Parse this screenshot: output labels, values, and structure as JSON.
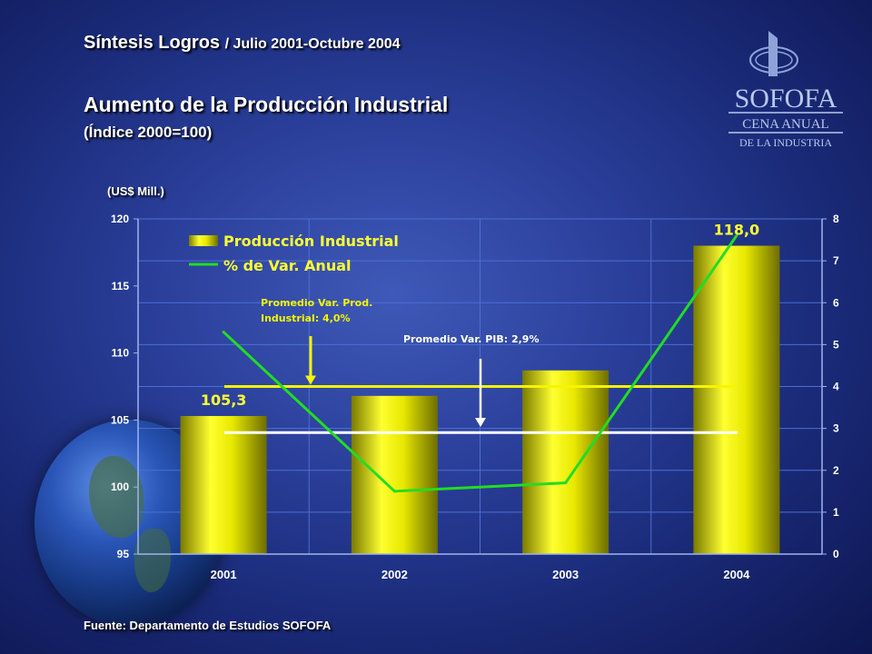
{
  "header": {
    "title": "Síntesis Logros",
    "title_suffix": "/ Julio 2001-Octubre 2004"
  },
  "logo": {
    "name": "SOFOFA",
    "line1": "CENA ANUAL",
    "line2": "DE LA INDUSTRIA"
  },
  "footer": {
    "source": "Fuente: Departamento de Estudios SOFOFA"
  },
  "colors": {
    "bar": "#e6e600",
    "line": "#22dd22",
    "promedio_prod": "#f5f500",
    "promedio_pib": "#ffffff"
  },
  "chart_data": {
    "type": "bar",
    "title": "Aumento de la Producción Industrial",
    "subtitle": "(Índice 2000=100)",
    "unit_label": "(US$ Mill.)",
    "categories": [
      "2001",
      "2002",
      "2003",
      "2004"
    ],
    "ylim": [
      95,
      120
    ],
    "yticks": [
      95,
      100,
      105,
      110,
      115,
      120
    ],
    "y2lim": [
      0,
      8
    ],
    "y2ticks": [
      0,
      1,
      2,
      3,
      4,
      5,
      6,
      7,
      8
    ],
    "grid": true,
    "legend_position": "top-left",
    "series": [
      {
        "name": "Producción Industrial",
        "type": "bar",
        "axis": "left",
        "values": [
          105.3,
          106.8,
          108.7,
          118.0
        ]
      },
      {
        "name": "% de Var. Anual",
        "type": "line",
        "axis": "right",
        "values": [
          5.3,
          1.5,
          1.7,
          7.6
        ]
      }
    ],
    "data_labels": [
      {
        "category": "2001",
        "text": "105,3"
      },
      {
        "category": "2004",
        "text": "118,0"
      }
    ],
    "reference_lines": [
      {
        "name": "promedio-prod",
        "axis": "right",
        "value": 4.0,
        "label_line1": "Promedio Var. Prod.",
        "label_line2": "Industrial: 4,0%"
      },
      {
        "name": "promedio-pib",
        "axis": "right",
        "value": 2.9,
        "label_line1": "Promedio Var. PIB: 2,9%"
      }
    ]
  }
}
